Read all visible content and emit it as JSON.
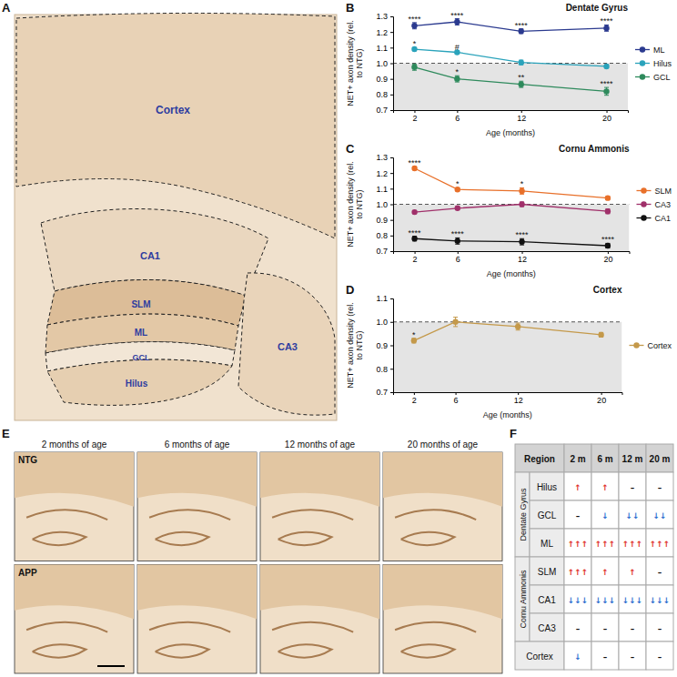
{
  "chart_data": [
    {
      "type": "line",
      "panel": "B",
      "title": "Dentate Gyrus",
      "x_label": "Age (months)",
      "y_label": "NET+ axon density (rel. to NTG)",
      "x": [
        2,
        6,
        12,
        20
      ],
      "xlim": [
        0,
        22
      ],
      "xticks": [
        2,
        6,
        12,
        20
      ],
      "ylim": [
        0.7,
        1.3
      ],
      "yticks": [
        0.7,
        0.8,
        0.9,
        {
          "value": 1,
          "label": "1.0"
        },
        1.1,
        1.2,
        1.3
      ],
      "baseline": 1,
      "grid": false,
      "legend": "right",
      "marker": "circle",
      "line_style": "solid",
      "series": [
        {
          "name": "ML",
          "color": "#2b3a8f",
          "values": [
            1.24,
            1.265,
            1.205,
            1.225
          ],
          "errors": [
            0.02,
            0.02,
            0.015,
            0.02
          ],
          "annotations": [
            "****",
            "****",
            "****",
            "****"
          ]
        },
        {
          "name": "Hilus",
          "color": "#2aa3bb",
          "values": [
            1.09,
            1.07,
            1.005,
            0.98
          ],
          "errors": [
            0.01,
            0.01,
            0.015,
            0.01
          ],
          "annotations": [
            "*",
            "#",
            null,
            null
          ]
        },
        {
          "name": "GCL",
          "color": "#2e8a5c",
          "values": [
            0.975,
            0.9,
            0.865,
            0.82
          ],
          "errors": [
            0.02,
            0.02,
            0.02,
            0.025
          ],
          "annotations": [
            null,
            "*",
            "**",
            "****"
          ]
        }
      ]
    },
    {
      "type": "line",
      "panel": "C",
      "title": "Cornu Ammonis",
      "x_label": "Age (months)",
      "y_label": "NET+ axon density (rel. to NTG)",
      "x": [
        2,
        6,
        12,
        20
      ],
      "xlim": [
        0,
        22
      ],
      "xticks": [
        2,
        6,
        12,
        20
      ],
      "ylim": [
        0.7,
        1.3
      ],
      "yticks": [
        0.7,
        0.8,
        0.9,
        {
          "value": 1,
          "label": "1.0"
        },
        1.1,
        1.2,
        1.3
      ],
      "baseline": 1,
      "grid": false,
      "legend": "right",
      "marker": "circle",
      "line_style": "solid",
      "series": [
        {
          "name": "SLM",
          "color": "#e8702a",
          "values": [
            1.23,
            1.095,
            1.085,
            1.04
          ],
          "errors": [
            0.01,
            0.01,
            0.02,
            0.01
          ],
          "annotations": [
            "****",
            "*",
            "*",
            null
          ]
        },
        {
          "name": "CA3",
          "color": "#a0306a",
          "values": [
            0.95,
            0.975,
            1.0,
            0.955
          ],
          "errors": [
            0.01,
            0.01,
            0.015,
            0.015
          ],
          "annotations": [
            null,
            null,
            null,
            null
          ]
        },
        {
          "name": "CA1",
          "color": "#111111",
          "values": [
            0.78,
            0.765,
            0.76,
            0.735
          ],
          "errors": [
            0.015,
            0.02,
            0.02,
            0.015
          ],
          "annotations": [
            "****",
            "****",
            "****",
            "****"
          ]
        }
      ]
    },
    {
      "type": "line",
      "panel": "D",
      "title": "Cortex",
      "x_label": "Age (months)",
      "y_label": "NET+ axon density (rel. to NTG)",
      "x": [
        2,
        6,
        12,
        20
      ],
      "xlim": [
        0,
        22
      ],
      "xticks": [
        2,
        6,
        12,
        20
      ],
      "ylim": [
        0.7,
        1.1
      ],
      "yticks": [
        0.7,
        0.8,
        0.9,
        {
          "value": 1,
          "label": "1.0"
        },
        1.1
      ],
      "baseline": 1,
      "grid": false,
      "legend": "right",
      "marker": "circle",
      "line_style": "solid",
      "series": [
        {
          "name": "Cortex",
          "color": "#c4994a",
          "values": [
            0.92,
            1.0,
            0.98,
            0.945
          ],
          "errors": [
            0.01,
            0.02,
            0.015,
            0.01
          ],
          "annotations": [
            "*",
            null,
            null,
            null
          ]
        }
      ]
    }
  ],
  "image_a": {
    "panel": "A",
    "regions": [
      "Cortex",
      "CA1",
      "SLM",
      "ML",
      "GCL",
      "Hilus",
      "CA3"
    ]
  },
  "image_e": {
    "panel": "E",
    "columns": [
      "2 months of age",
      "6 months of age",
      "12 months of age",
      "20 months of age"
    ],
    "rows": [
      "NTG",
      "APP"
    ]
  },
  "table_f": {
    "panel": "F",
    "header": [
      "Region",
      "2 m",
      "6 m",
      "12 m",
      "20 m"
    ],
    "groups": [
      {
        "name": "Dentate Gyrus",
        "rows": [
          {
            "label": "Hilus",
            "cells": [
              "↑",
              "↑",
              "–",
              "–"
            ]
          },
          {
            "label": "GCL",
            "cells": [
              "–",
              "↓",
              "↓↓",
              "↓↓"
            ]
          },
          {
            "label": "ML",
            "cells": [
              "↑↑↑",
              "↑↑↑",
              "↑↑↑",
              "↑↑↑"
            ]
          }
        ]
      },
      {
        "name": "Cornu Ammonis",
        "rows": [
          {
            "label": "SLM",
            "cells": [
              "↑↑↑",
              "↑",
              "↑",
              "–"
            ]
          },
          {
            "label": "CA1",
            "cells": [
              "↓↓↓",
              "↓↓↓",
              "↓↓↓",
              "↓↓↓"
            ]
          },
          {
            "label": "CA3",
            "cells": [
              "–",
              "–",
              "–",
              "–"
            ]
          }
        ]
      },
      {
        "rows": [
          {
            "label": "Cortex",
            "cells": [
              "↓",
              "–",
              "–",
              "–"
            ]
          }
        ]
      }
    ]
  }
}
